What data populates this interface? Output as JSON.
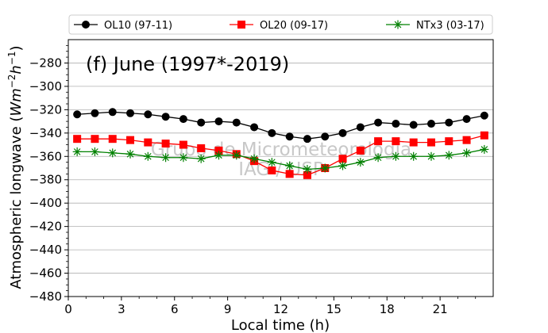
{
  "chart_data": {
    "type": "line",
    "title": "(f) June (1997*-2019)",
    "xlabel": "Local time (h)",
    "ylabel_main": "Atmospheric longwave (",
    "ylabel_units": "Wm",
    "ylabel_sup1": "−2",
    "ylabel_units2": "h",
    "ylabel_sup2": "−1",
    "ylabel_close": ")",
    "xlim": [
      0,
      24
    ],
    "ylim": [
      -480,
      -260
    ],
    "xticks": [
      0,
      3,
      6,
      9,
      12,
      15,
      18,
      21
    ],
    "yticks": [
      -480,
      -460,
      -440,
      -420,
      -400,
      -380,
      -360,
      -340,
      -320,
      -300,
      -280
    ],
    "grid": "horizontal",
    "legend_position": "top",
    "x": [
      0.5,
      1.5,
      2.5,
      3.5,
      4.5,
      5.5,
      6.5,
      7.5,
      8.5,
      9.5,
      10.5,
      11.5,
      12.5,
      13.5,
      14.5,
      15.5,
      16.5,
      17.5,
      18.5,
      19.5,
      20.5,
      21.5,
      22.5,
      23.5
    ],
    "series": [
      {
        "name": "OL10 (97-11)",
        "color": "#000000",
        "marker": "circle",
        "values": [
          -324,
          -323,
          -322,
          -323,
          -324,
          -326,
          -328,
          -331,
          -330,
          -331,
          -335,
          -340,
          -343,
          -345,
          -343,
          -340,
          -335,
          -331,
          -332,
          -333,
          -332,
          -331,
          -328,
          -325
        ]
      },
      {
        "name": "OL20 (09-17)",
        "color": "#ff0000",
        "marker": "square",
        "values": [
          -345,
          -345,
          -345,
          -346,
          -348,
          -349,
          -350,
          -353,
          -355,
          -358,
          -364,
          -372,
          -375,
          -376,
          -370,
          -362,
          -355,
          -347,
          -347,
          -348,
          -348,
          -347,
          -346,
          -342
        ]
      },
      {
        "name": "NTx3 (03-17)",
        "color": "#008000",
        "marker": "star",
        "values": [
          -356,
          -356,
          -357,
          -358,
          -360,
          -361,
          -361,
          -362,
          -359,
          -359,
          -362,
          -365,
          -368,
          -371,
          -370,
          -368,
          -365,
          -361,
          -360,
          -360,
          -360,
          -359,
          -357,
          -354
        ]
      }
    ]
  },
  "watermark": {
    "line1": "Grupo de Micrometeorologia",
    "line2": "IAG / USP"
  }
}
